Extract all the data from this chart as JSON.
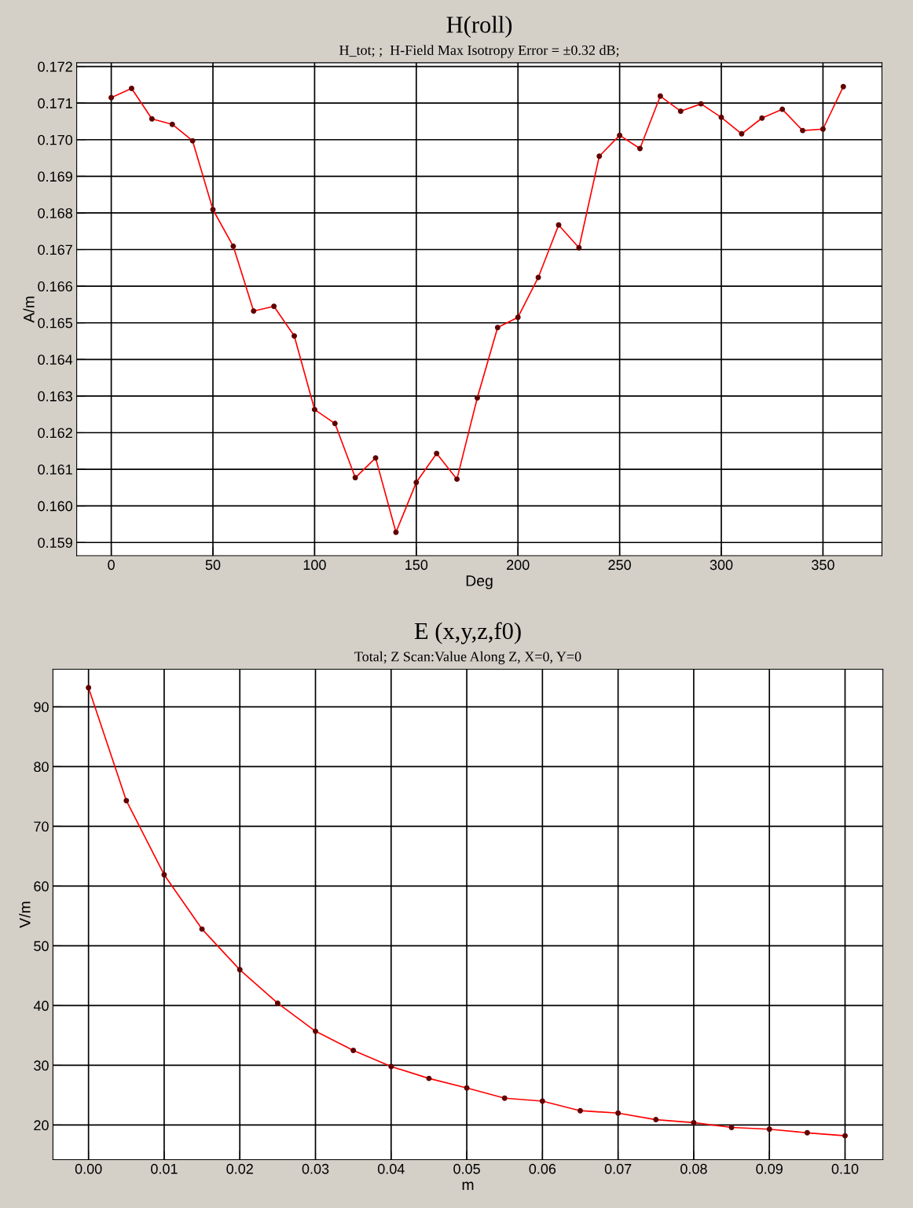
{
  "chart_data": [
    {
      "type": "line",
      "title": "H(roll)",
      "subtitle": "H_tot; ;  H-Field Max Isotropy Error = ±0.32 dB;",
      "xlabel": "Deg",
      "ylabel": "A/m",
      "x": [
        0,
        10,
        20,
        30,
        40,
        50,
        60,
        70,
        80,
        90,
        100,
        110,
        120,
        130,
        140,
        150,
        160,
        170,
        180,
        190,
        200,
        210,
        220,
        230,
        240,
        250,
        260,
        270,
        280,
        290,
        300,
        310,
        320,
        330,
        340,
        350,
        360
      ],
      "series": [
        {
          "color": "#ff0000",
          "values": [
            0.17115,
            0.1714,
            0.17057,
            0.17042,
            0.16997,
            0.16809,
            0.16709,
            0.16532,
            0.16545,
            0.16464,
            0.16263,
            0.16225,
            0.16077,
            0.16131,
            0.15928,
            0.16064,
            0.16143,
            0.16073,
            0.16295,
            0.16487,
            0.16515,
            0.16624,
            0.16767,
            0.16705,
            0.16955,
            0.17012,
            0.16976,
            0.17119,
            0.17078,
            0.17098,
            0.17061,
            0.17016,
            0.17059,
            0.17083,
            0.17025,
            0.17029,
            0.17145
          ]
        }
      ],
      "xlim": [
        -17,
        379
      ],
      "ylim": [
        0.15864,
        0.1721
      ],
      "xticks": [
        0,
        50,
        100,
        150,
        200,
        250,
        300,
        350
      ],
      "yticks": [
        {
          "value": 0.159,
          "label": "0.159"
        },
        {
          "value": 0.16,
          "label": "0.160"
        },
        {
          "value": 0.161,
          "label": "0.161"
        },
        {
          "value": 0.162,
          "label": "0.162"
        },
        {
          "value": 0.163,
          "label": "0.163"
        },
        {
          "value": 0.164,
          "label": "0.164"
        },
        {
          "value": 0.165,
          "label": "0.165"
        },
        {
          "value": 0.166,
          "label": "0.166"
        },
        {
          "value": 0.167,
          "label": "0.167"
        },
        {
          "value": 0.168,
          "label": "0.168"
        },
        {
          "value": 0.169,
          "label": "0.169"
        },
        {
          "value": 0.17,
          "label": "0.170"
        },
        {
          "value": 0.171,
          "label": "0.171"
        },
        {
          "value": 0.172,
          "label": "0.172"
        }
      ],
      "grid": true,
      "marker": "circle",
      "line_style": "solid"
    },
    {
      "type": "line",
      "title": "E (x,y,z,f0)",
      "subtitle": "Total; Z Scan:Value Along Z, X=0, Y=0",
      "xlabel": "m",
      "ylabel": "V/m",
      "x": [
        0,
        0.005,
        0.01,
        0.015,
        0.02,
        0.025,
        0.03,
        0.035,
        0.04,
        0.045,
        0.05,
        0.055,
        0.06,
        0.065,
        0.07,
        0.075,
        0.08,
        0.085,
        0.09,
        0.095,
        0.1
      ],
      "series": [
        {
          "color": "#ff0000",
          "values": [
            93.2,
            74.3,
            61.9,
            52.8,
            46.0,
            40.4,
            35.7,
            32.5,
            29.8,
            27.8,
            26.2,
            24.5,
            24.0,
            22.4,
            22.0,
            20.9,
            20.4,
            19.6,
            19.3,
            18.7,
            18.2
          ]
        }
      ],
      "xlim": [
        -0.0047,
        0.105
      ],
      "ylim": [
        14.2,
        96.3
      ],
      "xticks": [
        {
          "value": 0,
          "label": "0.00"
        },
        {
          "value": 0.01,
          "label": "0.01"
        },
        {
          "value": 0.02,
          "label": "0.02"
        },
        {
          "value": 0.03,
          "label": "0.03"
        },
        {
          "value": 0.04,
          "label": "0.04"
        },
        {
          "value": 0.05,
          "label": "0.05"
        },
        {
          "value": 0.06,
          "label": "0.06"
        },
        {
          "value": 0.07,
          "label": "0.07"
        },
        {
          "value": 0.08,
          "label": "0.08"
        },
        {
          "value": 0.09,
          "label": "0.09"
        },
        {
          "value": 0.1,
          "label": "0.10"
        }
      ],
      "yticks": [
        20,
        30,
        40,
        50,
        60,
        70,
        80,
        90
      ],
      "grid": true,
      "marker": "circle",
      "line_style": "solid"
    }
  ]
}
